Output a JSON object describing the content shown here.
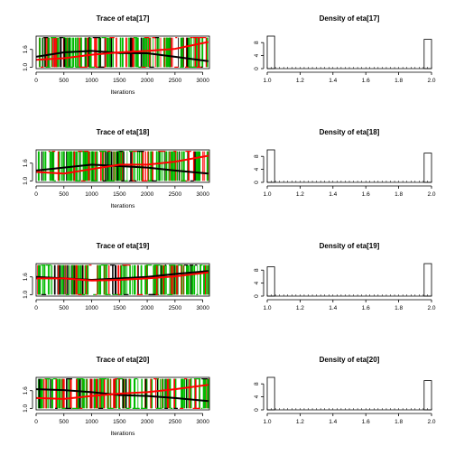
{
  "chart_data": [
    {
      "type": "line",
      "title": "Trace of eta[17]",
      "xlabel": "Iterations",
      "ylabel": "",
      "xlim": [
        0,
        3120
      ],
      "ylim": [
        0.95,
        2.05
      ],
      "xticks": [
        "0",
        "500",
        "1000",
        "1500",
        "2000",
        "2500",
        "3000"
      ],
      "yticks": [
        "1.0",
        "1.6"
      ],
      "trends": [
        {
          "color": "#000000",
          "points": [
            [
              0,
              1.35
            ],
            [
              500,
              1.5
            ],
            [
              1000,
              1.55
            ],
            [
              1500,
              1.48
            ],
            [
              2000,
              1.47
            ],
            [
              2500,
              1.35
            ],
            [
              3100,
              1.2
            ]
          ]
        },
        {
          "color": "#ff0000",
          "points": [
            [
              0,
              1.25
            ],
            [
              500,
              1.3
            ],
            [
              1000,
              1.42
            ],
            [
              1500,
              1.5
            ],
            [
              2000,
              1.55
            ],
            [
              2500,
              1.62
            ],
            [
              3100,
              1.85
            ]
          ]
        }
      ]
    },
    {
      "type": "bar",
      "title": "Density of eta[17]",
      "xlabel": "",
      "ylabel": "",
      "xlim": [
        1.0,
        2.0
      ],
      "ylim": [
        0,
        10
      ],
      "xticks": [
        "1.0",
        "1.2",
        "1.4",
        "1.6",
        "1.8",
        "2.0"
      ],
      "yticks": [
        "0",
        "4",
        "8"
      ],
      "bars": [
        {
          "x": 1.0,
          "value": 10
        },
        {
          "x": 2.0,
          "value": 9
        }
      ]
    },
    {
      "type": "line",
      "title": "Trace of eta[18]",
      "xlabel": "Iterations",
      "ylabel": "",
      "xlim": [
        0,
        3120
      ],
      "ylim": [
        0.95,
        2.05
      ],
      "xticks": [
        "0",
        "500",
        "1000",
        "1500",
        "2000",
        "2500",
        "3000"
      ],
      "yticks": [
        "1.0",
        "1.6"
      ],
      "trends": [
        {
          "color": "#000000",
          "points": [
            [
              0,
              1.35
            ],
            [
              500,
              1.45
            ],
            [
              1000,
              1.55
            ],
            [
              1500,
              1.5
            ],
            [
              2000,
              1.45
            ],
            [
              2500,
              1.35
            ],
            [
              3100,
              1.25
            ]
          ]
        },
        {
          "color": "#ff0000",
          "points": [
            [
              0,
              1.3
            ],
            [
              500,
              1.25
            ],
            [
              1000,
              1.4
            ],
            [
              1500,
              1.55
            ],
            [
              2000,
              1.55
            ],
            [
              2500,
              1.65
            ],
            [
              3100,
              1.85
            ]
          ]
        }
      ]
    },
    {
      "type": "bar",
      "title": "Density of eta[18]",
      "xlabel": "",
      "ylabel": "",
      "xlim": [
        1.0,
        2.0
      ],
      "ylim": [
        0,
        10
      ],
      "xticks": [
        "1.0",
        "1.2",
        "1.4",
        "1.6",
        "1.8",
        "2.0"
      ],
      "yticks": [
        "0",
        "4",
        "8"
      ],
      "bars": [
        {
          "x": 1.0,
          "value": 10
        },
        {
          "x": 2.0,
          "value": 9
        }
      ]
    },
    {
      "type": "line",
      "title": "Trace of eta[19]",
      "xlabel": "",
      "ylabel": "",
      "xlim": [
        0,
        3120
      ],
      "ylim": [
        0.95,
        2.05
      ],
      "xticks": [
        "0",
        "500",
        "1000",
        "1500",
        "2000",
        "2500",
        "3000"
      ],
      "yticks": [
        "1.0",
        "1.6"
      ],
      "trends": [
        {
          "color": "#000000",
          "points": [
            [
              0,
              1.6
            ],
            [
              500,
              1.55
            ],
            [
              1000,
              1.5
            ],
            [
              1500,
              1.55
            ],
            [
              2000,
              1.6
            ],
            [
              2500,
              1.7
            ],
            [
              3100,
              1.8
            ]
          ]
        },
        {
          "color": "#ff0000",
          "points": [
            [
              0,
              1.55
            ],
            [
              500,
              1.55
            ],
            [
              1000,
              1.48
            ],
            [
              1500,
              1.5
            ],
            [
              2000,
              1.55
            ],
            [
              2500,
              1.62
            ],
            [
              3100,
              1.75
            ]
          ]
        }
      ]
    },
    {
      "type": "bar",
      "title": "Density of eta[19]",
      "xlabel": "",
      "ylabel": "",
      "xlim": [
        1.0,
        2.0
      ],
      "ylim": [
        0,
        10
      ],
      "xticks": [
        "1.0",
        "1.2",
        "1.4",
        "1.6",
        "1.8",
        "2.0"
      ],
      "yticks": [
        "0",
        "4",
        "8"
      ],
      "bars": [
        {
          "x": 1.0,
          "value": 9
        },
        {
          "x": 2.0,
          "value": 10
        }
      ]
    },
    {
      "type": "line",
      "title": "Trace of eta[20]",
      "xlabel": "Iterations",
      "ylabel": "",
      "xlim": [
        0,
        3120
      ],
      "ylim": [
        0.95,
        2.05
      ],
      "xticks": [
        "0",
        "500",
        "1000",
        "1500",
        "2000",
        "2500",
        "3000"
      ],
      "yticks": [
        "1.0",
        "1.6"
      ],
      "trends": [
        {
          "color": "#000000",
          "points": [
            [
              0,
              1.65
            ],
            [
              500,
              1.62
            ],
            [
              1000,
              1.55
            ],
            [
              1500,
              1.45
            ],
            [
              2000,
              1.42
            ],
            [
              2500,
              1.35
            ],
            [
              3100,
              1.25
            ]
          ]
        },
        {
          "color": "#ff0000",
          "points": [
            [
              0,
              1.35
            ],
            [
              500,
              1.32
            ],
            [
              1000,
              1.42
            ],
            [
              1500,
              1.5
            ],
            [
              2000,
              1.55
            ],
            [
              2500,
              1.65
            ],
            [
              3100,
              1.8
            ]
          ]
        }
      ]
    },
    {
      "type": "bar",
      "title": "Density of eta[20]",
      "xlabel": "",
      "ylabel": "",
      "xlim": [
        1.0,
        2.0
      ],
      "ylim": [
        0,
        10
      ],
      "xticks": [
        "1.0",
        "1.2",
        "1.4",
        "1.6",
        "1.8",
        "2.0"
      ],
      "yticks": [
        "0",
        "4",
        "8"
      ],
      "bars": [
        {
          "x": 1.0,
          "value": 10
        },
        {
          "x": 2.0,
          "value": 9
        }
      ]
    }
  ],
  "colors": {
    "chain1": "#000000",
    "chain2": "#ff0000",
    "chain3": "#00bb00",
    "frame": "#000000"
  }
}
